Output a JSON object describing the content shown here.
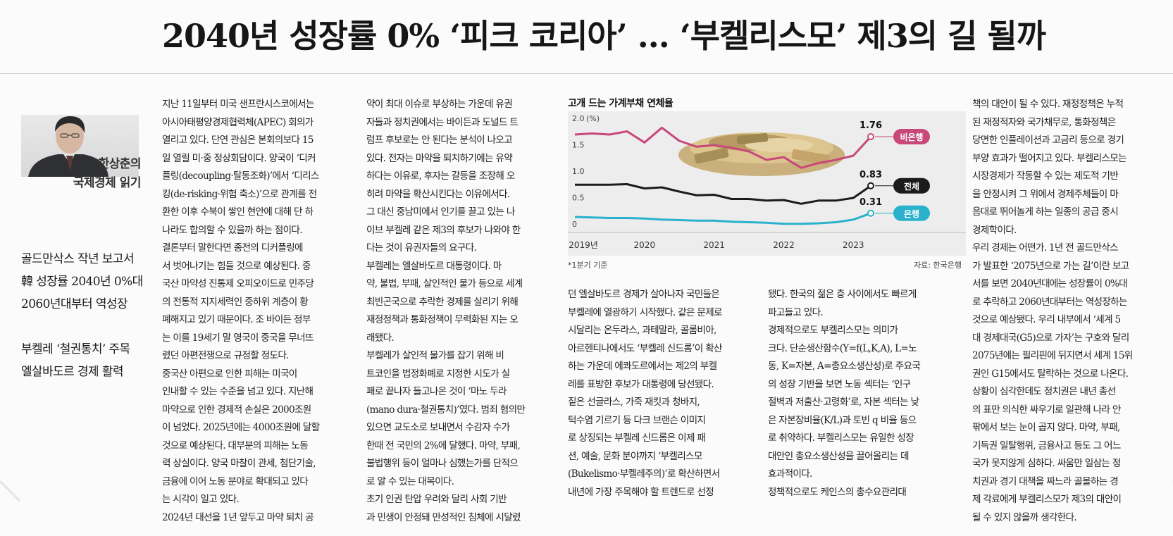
{
  "headline": "2040년 성장률 0% ‘피크 코리아’ … ‘부켈리스모’ 제3의 길 될까",
  "byline": {
    "name": "한상춘의",
    "column": "국제경제 읽기"
  },
  "subheads": [
    [
      "골드만삭스 작년 보고서",
      "韓 성장률 2040년 0%대",
      "2060년대부터 역성장"
    ],
    [
      "부켈레 ‘철권통치’ 주목",
      "엘살바도르 경제 활력"
    ]
  ],
  "columns": [
    [
      "지난 11일부터 미국 샌프란시스코에서는",
      "아시아태평양경제협력체(APEC) 회의가",
      "열리고 있다. 단연 관심은 본회의보다 15",
      "일 열릴 미·중 정상회담이다. 양국이 ‘디커",
      "플링(decoupling·탈동조화)’에서 ‘디리스",
      "킹(de-risking·위험 축소)’으로 관계를 전",
      "환한 이후 수북이 쌓인 현안에 대해 단 하",
      "나라도 합의할 수 있을까 하는 점이다.",
      "  결론부터 말한다면 종전의 디커플링에",
      "서 벗어나기는 힘들 것으로 예상된다. 중",
      "국산 마약성 진통제 오피오이드로 민주당",
      "의 전통적 지지세력인 중하위 계층이 황",
      "폐해지고 있기 때문이다. 조 바이든 정부",
      "는 이를 19세기 말 영국이 중국을 무너뜨",
      "렸던 아편전쟁으로 규정할 정도다.",
      "  중국산 아편으로 인한 피해는 미국이",
      "인내할 수 있는 수준을 넘고 있다. 지난해",
      "마약으로 인한 경제적 손실은 2000조원",
      "이 넘었다. 2025년에는 4000조원에 달할",
      "것으로 예상된다. 대부분의 피해는 노동",
      "력 상실이다. 양국 마찰이 관세, 첨단기술,",
      "금융에 이어 노동 분야로 확대되고 있다",
      "는 시각이 일고 있다.",
      "  2024년 대선을 1년 앞두고 마약 퇴치 공"
    ],
    [
      "약이 최대 이슈로 부상하는 가운데 유권",
      "자들과 정치권에서는 바이든과 도널드 트",
      "럼프 후보로는 안 된다는 분석이 나오고",
      "있다. 전자는 마약을 퇴치하기에는 유약",
      "하다는 이유로, 후자는 갈등을 조장해 오",
      "히려 마약을 확산시킨다는 이유에서다.",
      "그 대신 중남미에서 인기를 끌고 있는 나",
      "이브 부켈레 같은 제3의 후보가 나와야 한",
      "다는 것이 유권자들의 요구다.",
      "  부켈레는 엘살바도르 대통령이다. 마",
      "약, 불법, 부패, 살인적인 물가 등으로 세계",
      "최빈곤국으로 추락한 경제를 살리기 위해",
      "재정정책과 통화정책이 무력화된 지는 오",
      "래됐다.",
      "  부켈레가 살인적 물가를 잡기 위해 비",
      "트코인을 법정화폐로 지정한 시도가 실",
      "패로 끝나자 들고나온 것이 ‘마노 두라",
      "(mano dura·철권통치)’였다. 범죄 혐의만",
      "있으면 교도소로 보내면서 수감자 수가",
      "한때 전 국민의 2%에 달했다. 마약, 부패,",
      "불법행위 등이 얼마나 심했는가를 단적으",
      "로 알 수 있는 대목이다.",
      "  초기 인권 탄압 우려와 달리 사회 기반",
      "과 민생이 안정돼 만성적인 침체에 시달렸"
    ],
    [
      "던 엘살바도르 경제가 살아나자 국민들은",
      "부켈레에 열광하기 시작했다. 같은 문제로",
      "시달리는 온두라스, 과테말라, 콜롬비아,",
      "아르헨티나에서도 ‘부켈레 신드롬’이 확산",
      "하는 가운데 에콰도르에서는 제2의 부켈",
      "레를 표방한 후보가 대통령에 당선됐다.",
      "  짙은 선글라스, 가죽 재킷과 청바지,",
      "턱수염 기르기 등 다크 브랜슨 이미지",
      "로 상징되는 부켈레 신드롬은 이제 패",
      "션, 예술, 문화 분야까지 ‘부켈리스모",
      "(Bukelismo·부켈레주의)’로 확산하면서",
      "내년에 가장 주목해야 할 트렌드로 선정"
    ],
    [
      "됐다. 한국의 젊은 층 사이에서도 빠르게",
      "파고들고 있다.",
      "  경제적으로도 부켈리스모는 의미가",
      "크다. 단순생산함수(Y=f(L,K,A), L=노",
      "동, K=자본, A=총요소생산성)로 주요국",
      "의 성장 기반을 보면 노동 섹터는 ‘인구",
      "절벽과 저출산·고령화’로, 자본 섹터는 낮",
      "은 자본장비율(K/L)과 토빈 q 비율 등으",
      "로 취약하다. 부켈리스모는 유일한 성장",
      "대안인 총요소생산성을 끌어올리는 데",
      "효과적이다.",
      "  정책적으로도 케인스의 총수요관리대"
    ],
    [
      "책의 대안이 될 수 있다. 재정정책은 누적",
      "된 재정적자와 국가채무로, 통화정책은",
      "당면한 인플레이션과 고금리 등으로 경기",
      "부양 효과가 떨어지고 있다. 부켈리스모는",
      "시장경제가 작동할 수 있는 제도적 기반",
      "을 안정시켜 그 위에서 경제주체들이 마",
      "음대로 뛰어놀게 하는 일종의 공급 중시",
      "경제학이다.",
      "  우리 경제는 어떤가. 1년 전 골드만삭스",
      "가 발표한 ‘2075년으로 가는 길’이란 보고",
      "서를 보면 2040년대에는 성장률이 0%대",
      "로 추락하고 2060년대부터는 역성장하는",
      "것으로 예상됐다. 우리 내부에서 ‘세계 5",
      "대 경제대국(G5)으로 가자’는 구호와 달리",
      "2075년에는 필리핀에 뒤지면서 세계 15위",
      "권인 G15에서도 탈락하는 것으로 나온다.",
      "  상황이 심각한데도 정치권은 내년 총선",
      "의 표만 의식한 싸우기로 일관해 나라 안",
      "팎에서 보는 눈이 곱지 않다. 마약, 부패,",
      "기득권 일탈행위, 금융사고 등도 그 어느",
      "국가 못지않게 심하다. 싸움만 일삼는 정",
      "치권과 경기 대책을 짜느라 골몰하는 경",
      "제 각료에게 부켈리스모가 제3의 대안이",
      "될 수 있지 않을까 생각한다."
    ]
  ],
  "chart_data": {
    "type": "line",
    "title": "고개 드는 가계부채 연체율",
    "ylabel": "(%)",
    "ylim": [
      0,
      2.0
    ],
    "yticks": [
      "0",
      "0.5",
      "1.0",
      "1.5",
      "2.0"
    ],
    "xticks": [
      "2019년",
      "2020",
      "2021",
      "2022",
      "2023"
    ],
    "x": [
      2019.0,
      2019.25,
      2019.5,
      2019.75,
      2020.0,
      2020.25,
      2020.5,
      2020.75,
      2021.0,
      2021.25,
      2021.5,
      2021.75,
      2022.0,
      2022.25,
      2022.5,
      2022.75,
      2023.0,
      2023.25
    ],
    "series": [
      {
        "name": "비은행",
        "color": "#c8487a",
        "label_color": "#c8487a",
        "values": [
          1.8,
          1.82,
          1.8,
          1.86,
          1.65,
          1.93,
          1.68,
          1.57,
          1.6,
          1.55,
          1.48,
          1.32,
          1.37,
          1.17,
          1.26,
          1.32,
          1.4,
          1.76
        ]
      },
      {
        "name": "전체",
        "color": "#1b1b1b",
        "label_color": "#1b1b1b",
        "values": [
          0.85,
          0.85,
          0.85,
          0.86,
          0.78,
          0.8,
          0.72,
          0.65,
          0.66,
          0.58,
          0.58,
          0.55,
          0.56,
          0.49,
          0.55,
          0.55,
          0.6,
          0.83
        ]
      },
      {
        "name": "은행",
        "color": "#2ab2cc",
        "label_color": "#2ab2cc",
        "values": [
          0.24,
          0.23,
          0.22,
          0.22,
          0.21,
          0.19,
          0.18,
          0.17,
          0.17,
          0.15,
          0.14,
          0.13,
          0.11,
          0.11,
          0.12,
          0.14,
          0.19,
          0.31
        ]
      }
    ],
    "end_labels": [
      "1.76",
      "0.83",
      "0.31"
    ],
    "footnote": "*1분기 기준",
    "source": "자료: 한국은행",
    "grid": false
  }
}
